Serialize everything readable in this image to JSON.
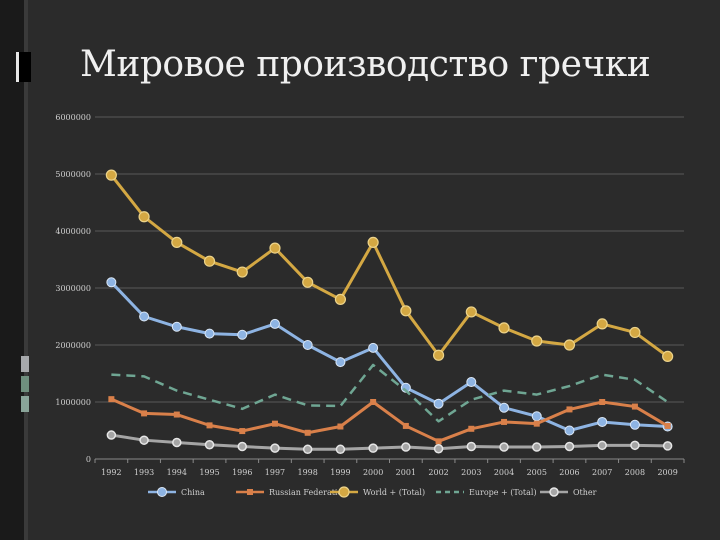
{
  "title": "Мировое производство гречки",
  "chart_data": {
    "type": "line",
    "title": "",
    "xlabel": "",
    "ylabel": "",
    "x": [
      "1992",
      "1993",
      "1994",
      "1995",
      "1996",
      "1997",
      "1998",
      "1999",
      "2000",
      "2001",
      "2002",
      "2003",
      "2004",
      "2005",
      "2006",
      "2007",
      "2008",
      "2009"
    ],
    "ylim": [
      0,
      6000000
    ],
    "yticks": [
      0,
      1000000,
      2000000,
      3000000,
      4000000,
      5000000,
      6000000
    ],
    "grid": true,
    "legend": "bottom",
    "series": [
      {
        "name": "China",
        "color": "#8eb4e3",
        "style": "solid",
        "marker": "diamond",
        "values": [
          3100000,
          2500000,
          2320000,
          2200000,
          2180000,
          2370000,
          2000000,
          1700000,
          1950000,
          1250000,
          970000,
          1350000,
          900000,
          750000,
          500000,
          650000,
          600000,
          570000
        ]
      },
      {
        "name": "Russian Federation",
        "color": "#d9804a",
        "style": "solid",
        "marker": "square",
        "values": [
          1050000,
          800000,
          780000,
          590000,
          490000,
          620000,
          460000,
          570000,
          1000000,
          580000,
          310000,
          530000,
          650000,
          620000,
          870000,
          1000000,
          920000,
          580000
        ]
      },
      {
        "name": "World + (Total)",
        "color": "#d4a843",
        "style": "solid",
        "marker": "circle",
        "values": [
          4980000,
          4250000,
          3800000,
          3470000,
          3280000,
          3700000,
          3100000,
          2800000,
          3800000,
          2600000,
          1820000,
          2580000,
          2300000,
          2070000,
          2000000,
          2370000,
          2220000,
          1800000
        ]
      },
      {
        "name": "Europe + (Total)",
        "color": "#6fa693",
        "style": "dashed",
        "marker": "none",
        "values": [
          1480000,
          1450000,
          1200000,
          1040000,
          880000,
          1130000,
          940000,
          930000,
          1650000,
          1200000,
          660000,
          1040000,
          1200000,
          1130000,
          1280000,
          1480000,
          1390000,
          1000000
        ]
      },
      {
        "name": "Other",
        "color": "#a5a5a5",
        "style": "solid",
        "marker": "circle-small",
        "values": [
          420000,
          330000,
          290000,
          250000,
          220000,
          190000,
          170000,
          170000,
          190000,
          210000,
          180000,
          220000,
          210000,
          210000,
          220000,
          240000,
          240000,
          230000
        ]
      }
    ]
  }
}
